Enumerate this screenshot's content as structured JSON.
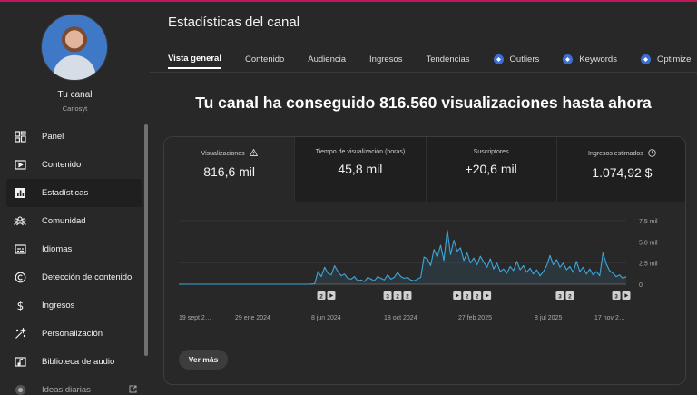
{
  "colors": {
    "accent_line": "#c2185b",
    "chart_line": "#3ea6d9",
    "extension": "#3b6fd6",
    "background": "#282828"
  },
  "sidebar": {
    "avatar": "channel-avatar",
    "channel_title": "Tu canal",
    "channel_name": "Carlosyt",
    "items": [
      {
        "label": "Panel",
        "icon": "dashboard-icon"
      },
      {
        "label": "Contenido",
        "icon": "content-icon"
      },
      {
        "label": "Estadísticas",
        "icon": "analytics-icon",
        "active": true
      },
      {
        "label": "Comunidad",
        "icon": "community-icon"
      },
      {
        "label": "Idiomas",
        "icon": "subtitles-icon"
      },
      {
        "label": "Detección de contenido",
        "icon": "copyright-icon"
      },
      {
        "label": "Ingresos",
        "icon": "dollar-icon"
      },
      {
        "label": "Personalización",
        "icon": "magic-wand-icon"
      },
      {
        "label": "Biblioteca de audio",
        "icon": "audio-library-icon"
      },
      {
        "label": "Ideas diarias",
        "icon": "ideas-icon",
        "external": true
      }
    ]
  },
  "main": {
    "title": "Estadísticas del canal",
    "tabs": [
      {
        "label": "Vista general",
        "active": true
      },
      {
        "label": "Contenido"
      },
      {
        "label": "Audiencia"
      },
      {
        "label": "Ingresos"
      },
      {
        "label": "Tendencias"
      },
      {
        "label": "Outliers",
        "extension": true
      },
      {
        "label": "Keywords",
        "extension": true
      },
      {
        "label": "Optimize",
        "extension": true
      }
    ],
    "headline": "Tu canal ha conseguido 816.560 visualizaciones hasta ahora",
    "metrics": [
      {
        "label": "Visualizaciones",
        "value": "816,6 mil",
        "icon": "warning-icon"
      },
      {
        "label": "Tiempo de visualización (horas)",
        "value": "45,8 mil"
      },
      {
        "label": "Suscriptores",
        "value": "+20,6 mil"
      },
      {
        "label": "Ingresos estimados",
        "value": "1.074,92 $",
        "icon": "clock-icon"
      }
    ],
    "see_more": "Ver más"
  },
  "chart_data": {
    "type": "line",
    "x_tick_labels": [
      "19 sept 2…",
      "29 ene 2024",
      "8 jun 2024",
      "18 oct 2024",
      "27 feb 2025",
      "8 jul 2025",
      "17 nov 2…"
    ],
    "y_tick_labels": [
      "7,5 mil",
      "5,0 mil",
      "2,5 mil",
      "0"
    ],
    "ylim": [
      0,
      7500
    ],
    "grid": true,
    "series": [
      {
        "values": [
          0,
          0,
          0,
          0,
          0,
          0,
          0,
          0,
          0,
          0,
          0,
          0,
          0,
          0,
          0,
          0,
          0,
          0,
          0,
          0,
          0,
          0,
          0,
          0,
          0,
          0,
          0,
          0,
          0,
          0,
          0,
          0,
          0,
          0,
          0,
          0,
          0,
          0,
          0,
          0,
          20,
          40,
          1500,
          900,
          2000,
          1300,
          1100,
          2200,
          1500,
          1000,
          1200,
          700,
          600,
          900,
          400,
          500,
          300,
          800,
          600,
          400,
          900,
          700,
          500,
          1100,
          600,
          800,
          1400,
          900,
          700,
          800,
          500,
          400,
          600,
          800,
          3200,
          3000,
          2200,
          4100,
          3200,
          4600,
          2800,
          6400,
          3500,
          5200,
          3900,
          4300,
          2800,
          3700,
          2500,
          3100,
          2300,
          3300,
          2600,
          2000,
          3000,
          1800,
          2500,
          1500,
          1800,
          1300,
          2100,
          1600,
          2700,
          1700,
          2200,
          1400,
          1900,
          1200,
          1700,
          1000,
          1500,
          2200,
          3400,
          2300,
          2900,
          2000,
          2500,
          1700,
          2100,
          1400,
          2700,
          1500,
          2000,
          1200,
          1800,
          1100,
          1500,
          1000,
          3700,
          2400,
          1600,
          1300,
          900,
          1100,
          700,
          900
        ]
      }
    ],
    "markers": [
      {
        "x_index": 43,
        "kind": "upload",
        "count": "2"
      },
      {
        "x_index": 46,
        "kind": "play"
      },
      {
        "x_index": 63,
        "kind": "upload",
        "count": "3"
      },
      {
        "x_index": 66,
        "kind": "upload",
        "count": "2"
      },
      {
        "x_index": 69,
        "kind": "upload",
        "count": "2"
      },
      {
        "x_index": 84,
        "kind": "play"
      },
      {
        "x_index": 87,
        "kind": "upload",
        "count": "2"
      },
      {
        "x_index": 90,
        "kind": "upload",
        "count": "2"
      },
      {
        "x_index": 93,
        "kind": "play"
      },
      {
        "x_index": 115,
        "kind": "upload",
        "count": "3"
      },
      {
        "x_index": 118,
        "kind": "upload",
        "count": "2"
      },
      {
        "x_index": 132,
        "kind": "upload",
        "count": "3"
      },
      {
        "x_index": 135,
        "kind": "play"
      }
    ]
  }
}
